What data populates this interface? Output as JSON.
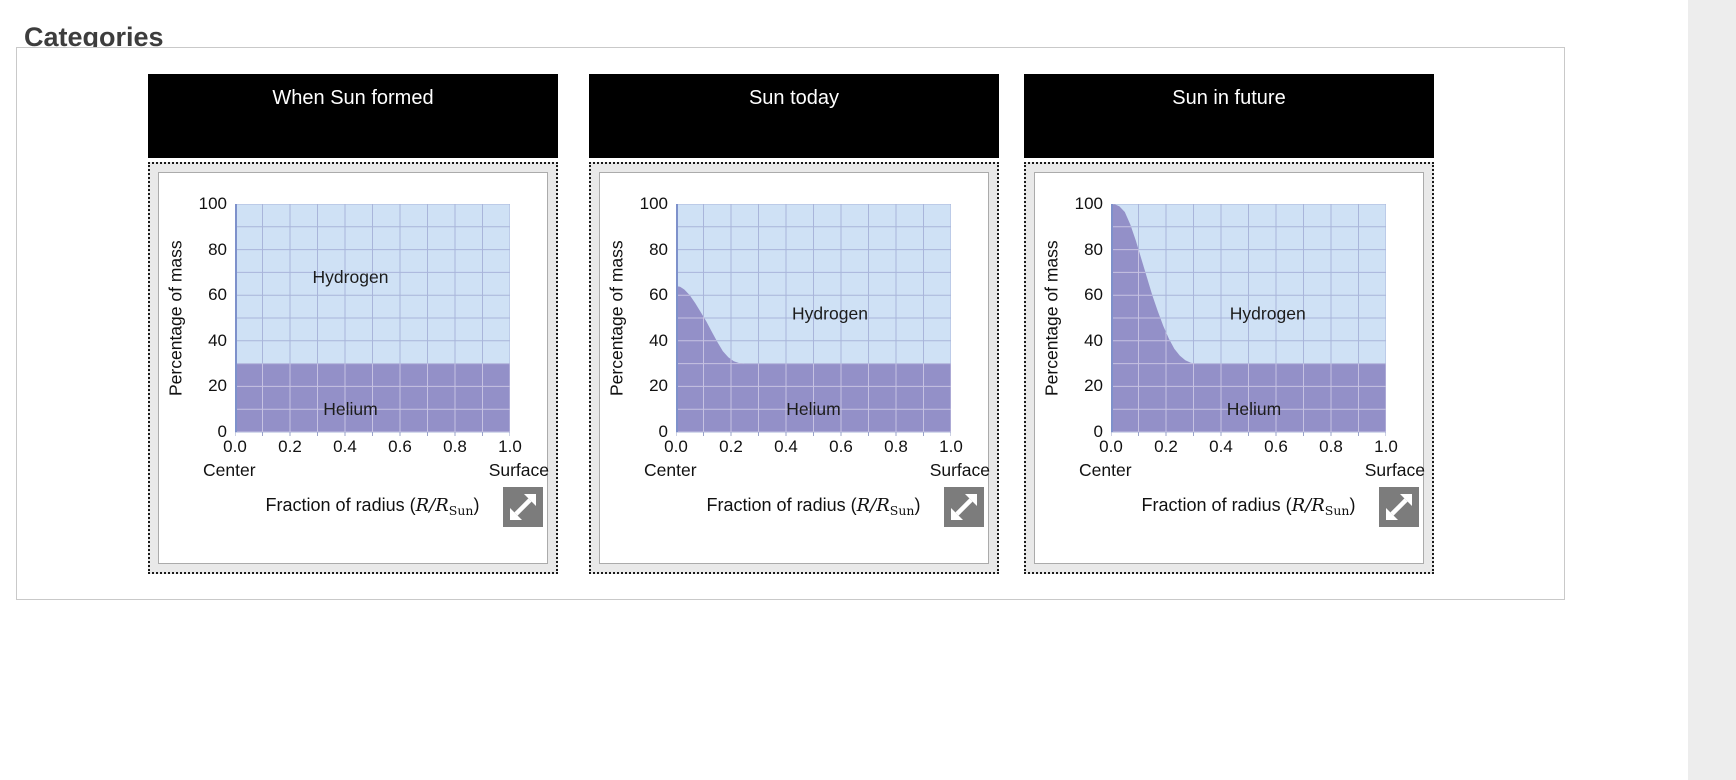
{
  "page": {
    "title": "Categories"
  },
  "colors": {
    "hydrogen_fill": "#cfe1f5",
    "helium_fill": "#9390c8",
    "grid_on_hydrogen": "#a9b5da",
    "grid_on_helium": "#c6c2e2",
    "y_axis_line": "#7e91cb",
    "axis_tick": "#9aa3c9",
    "header_bg": "#000000",
    "header_text": "#ffffff",
    "dotted_box_bg": "#e9e9e9",
    "card_border": "#ababab",
    "container_border": "#c9c9c9",
    "title_text": "#3d3d3d",
    "expand_icon_bg": "#7c7c7c",
    "right_strip_bg": "#ededed"
  },
  "icons": {
    "expand": "expand-diagonal-arrows-icon (white NE/SW arrows on gray square)"
  },
  "panels": [
    {
      "title": "When Sun formed"
    },
    {
      "title": "Sun today"
    },
    {
      "title": "Sun in future"
    }
  ],
  "chart_shared": {
    "ylabel": "Percentage of mass",
    "xlabel_parts": {
      "pre": "Fraction of radius (",
      "r1": "R",
      "slash": "/",
      "r2": "R",
      "sub": "Sun",
      "post": ")"
    },
    "xticks": [
      "0.0",
      "0.2",
      "0.4",
      "0.6",
      "0.8",
      "1.0"
    ],
    "yticks": [
      0,
      20,
      40,
      60,
      80,
      100
    ],
    "x_start_label": "Center",
    "x_end_label": "Surface",
    "xlim": [
      0,
      1
    ],
    "ylim": [
      0,
      100
    ],
    "grid": {
      "x_step": 0.1,
      "y_step": 10,
      "shown": true
    }
  },
  "chart_data": [
    {
      "type": "area",
      "title": "When Sun formed",
      "stacked_to": 100,
      "note": "Hydrogen fills from the Helium boundary up to 100%; Hydrogen % = 100 - Helium %.",
      "series": [
        {
          "name": "Hydrogen",
          "fill": "#cfe1f5",
          "label_pos": [
            0.42,
            68
          ],
          "points": [
            [
              0,
              70
            ],
            [
              1,
              70
            ]
          ]
        },
        {
          "name": "Helium",
          "fill": "#9390c8",
          "label_pos": [
            0.42,
            10
          ],
          "points": [
            [
              0,
              30
            ],
            [
              1,
              30
            ]
          ]
        }
      ]
    },
    {
      "type": "area",
      "title": "Sun today",
      "stacked_to": 100,
      "note": "Helium boundary declines from ~64% at center to 30% near r=0.25, flat to surface; Hydrogen % = 100 - Helium %.",
      "series": [
        {
          "name": "Hydrogen",
          "fill": "#cfe1f5",
          "label_pos": [
            0.56,
            52
          ],
          "points": [
            [
              0,
              36
            ],
            [
              0.05,
              40
            ],
            [
              0.11,
              51.5
            ],
            [
              0.15,
              60.5
            ],
            [
              0.21,
              69
            ],
            [
              0.25,
              70
            ],
            [
              1,
              70
            ]
          ]
        },
        {
          "name": "Helium",
          "fill": "#9390c8",
          "label_pos": [
            0.5,
            10
          ],
          "points": [
            [
              0,
              64
            ],
            [
              0.015,
              63.7
            ],
            [
              0.03,
              62.5
            ],
            [
              0.05,
              60
            ],
            [
              0.07,
              56.5
            ],
            [
              0.09,
              52.5
            ],
            [
              0.11,
              48.5
            ],
            [
              0.13,
              44
            ],
            [
              0.15,
              39.5
            ],
            [
              0.17,
              35.5
            ],
            [
              0.19,
              32.8
            ],
            [
              0.21,
              31
            ],
            [
              0.23,
              30.2
            ],
            [
              0.25,
              30
            ],
            [
              1,
              30
            ]
          ]
        }
      ]
    },
    {
      "type": "area",
      "title": "Sun in future",
      "stacked_to": 100,
      "note": "Helium is 100% at the center, declining to 30% near r=0.3, flat to surface; Hydrogen % = 100 - Helium %.",
      "series": [
        {
          "name": "Hydrogen",
          "fill": "#cfe1f5",
          "label_pos": [
            0.57,
            52
          ],
          "points": [
            [
              0,
              0
            ],
            [
              0.05,
              3.5
            ],
            [
              0.11,
              24
            ],
            [
              0.15,
              40
            ],
            [
              0.21,
              59
            ],
            [
              0.27,
              68.5
            ],
            [
              0.31,
              70
            ],
            [
              1,
              70
            ]
          ]
        },
        {
          "name": "Helium",
          "fill": "#9390c8",
          "label_pos": [
            0.52,
            10
          ],
          "points": [
            [
              0,
              100
            ],
            [
              0.015,
              99.8
            ],
            [
              0.03,
              99
            ],
            [
              0.05,
              96.5
            ],
            [
              0.07,
              91
            ],
            [
              0.09,
              84
            ],
            [
              0.11,
              76
            ],
            [
              0.13,
              68
            ],
            [
              0.15,
              60
            ],
            [
              0.17,
              53
            ],
            [
              0.19,
              46.5
            ],
            [
              0.21,
              41
            ],
            [
              0.23,
              36.5
            ],
            [
              0.25,
              33.5
            ],
            [
              0.27,
              31.5
            ],
            [
              0.29,
              30.4
            ],
            [
              0.31,
              30
            ],
            [
              1,
              30
            ]
          ]
        }
      ]
    }
  ]
}
